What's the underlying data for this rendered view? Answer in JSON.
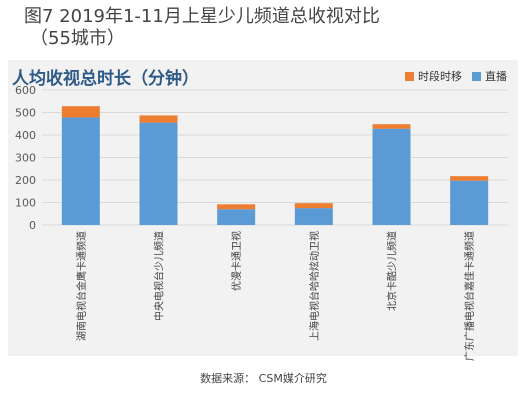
{
  "figure": {
    "title_line1": "图7  2019年1-11月上星少儿频道总收视对比",
    "title_line2": "（55城市）",
    "source": "数据来源：  CSM媒介研究"
  },
  "chart_data": {
    "type": "bar",
    "stacked": true,
    "title": "人均收视总时长（分钟）",
    "categories": [
      "湖南电视台金鹰卡通频道",
      "中央电视台少儿频道",
      "优漫卡通卫视",
      "上海电视台哈哈炫动卫视",
      "北京卡酷少儿频道",
      "广东广播电视台嘉佳卡通频道"
    ],
    "series": [
      {
        "name": "直播",
        "color": "#5b9bd5",
        "values": [
          478,
          455,
          70,
          75,
          428,
          197
        ]
      },
      {
        "name": "时段时移",
        "color": "#ed7d31",
        "values": [
          50,
          32,
          22,
          22,
          20,
          20
        ]
      }
    ],
    "legend_order": [
      "时段时移",
      "直播"
    ],
    "y_ticks": [
      0,
      100,
      200,
      300,
      400,
      500,
      600
    ],
    "ylim": [
      0,
      600
    ],
    "grid": true,
    "legend_position": "top-right",
    "colors": {
      "panel_bg": "#f2f2f2",
      "grid": "#d9d9d9",
      "title": "#2f5a87"
    }
  }
}
